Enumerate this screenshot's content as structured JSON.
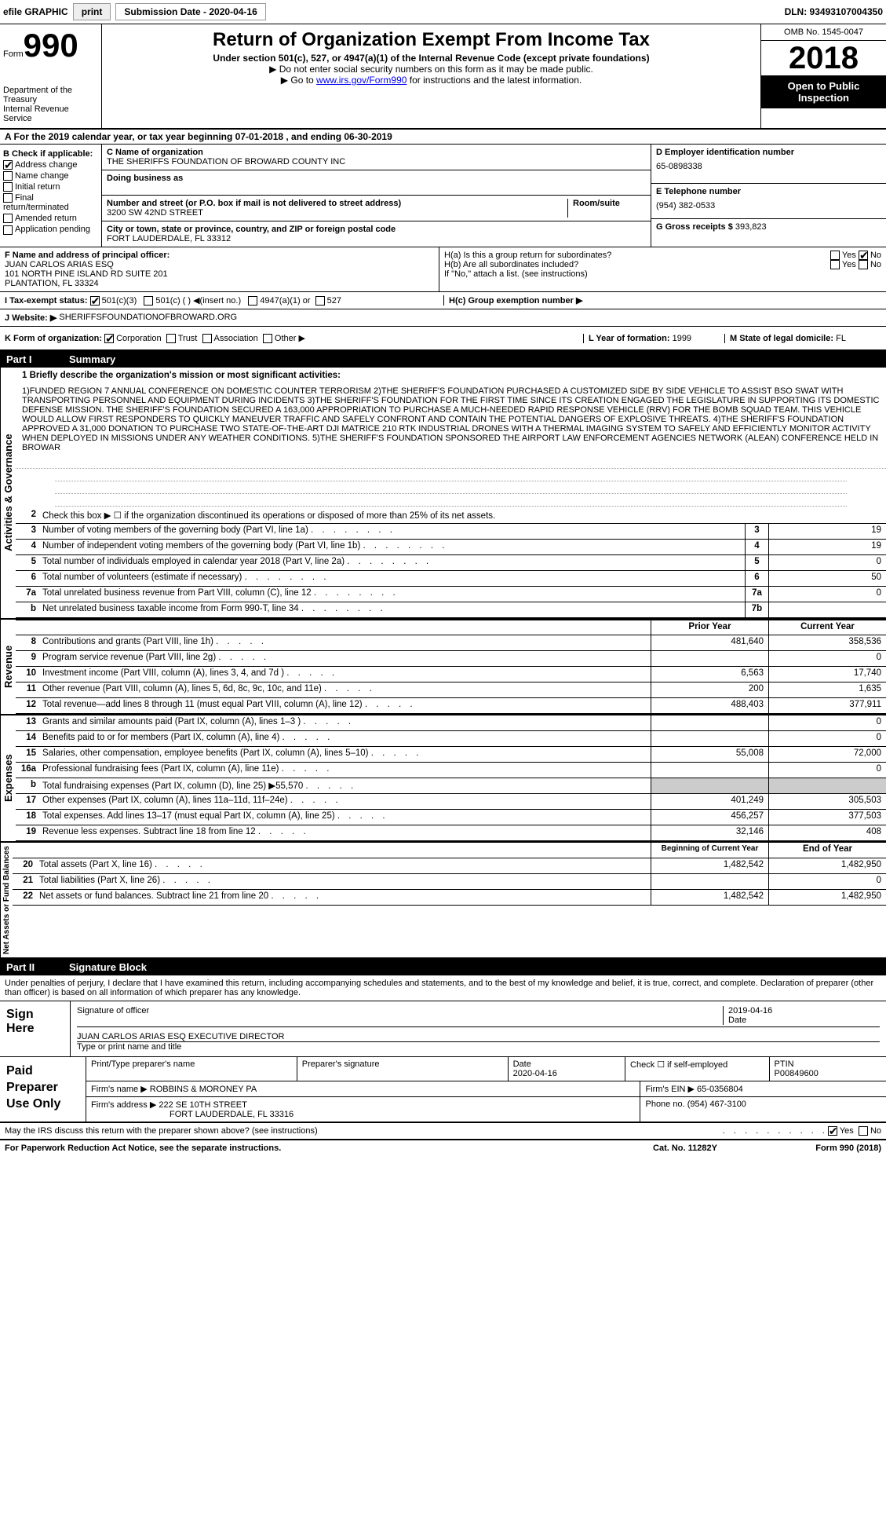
{
  "topbar": {
    "efile_label": "efile GRAPHIC",
    "print_btn": "print",
    "submission_label": "Submission Date - 2020-04-16",
    "dln": "DLN: 93493107004350"
  },
  "header": {
    "form_label": "Form",
    "form_num": "990",
    "dept": "Department of the Treasury",
    "irs": "Internal Revenue Service",
    "title": "Return of Organization Exempt From Income Tax",
    "subtitle": "Under section 501(c), 527, or 4947(a)(1) of the Internal Revenue Code (except private foundations)",
    "note1": "▶ Do not enter social security numbers on this form as it may be made public.",
    "note2_pre": "▶ Go to ",
    "note2_link": "www.irs.gov/Form990",
    "note2_post": " for instructions and the latest information.",
    "omb": "OMB No. 1545-0047",
    "year": "2018",
    "open": "Open to Public Inspection"
  },
  "period": {
    "text": "A For the 2019 calendar year, or tax year beginning 07-01-2018   , and ending 06-30-2019"
  },
  "checkboxes": {
    "header": "B Check if applicable:",
    "address_change": "Address change",
    "name_change": "Name change",
    "initial_return": "Initial return",
    "final_return": "Final return/terminated",
    "amended_return": "Amended return",
    "application_pending": "Application pending"
  },
  "entity": {
    "name_label": "C Name of organization",
    "name": "THE SHERIFFS FOUNDATION OF BROWARD COUNTY INC",
    "dba_label": "Doing business as",
    "dba": "",
    "street_label": "Number and street (or P.O. box if mail is not delivered to street address)",
    "street": "3200 SW 42ND STREET",
    "room_label": "Room/suite",
    "city_label": "City or town, state or province, country, and ZIP or foreign postal code",
    "city": "FORT LAUDERDALE, FL  33312",
    "officer_label": "F Name and address of principal officer:",
    "officer_name": "JUAN CARLOS ARIAS ESQ",
    "officer_addr1": "101 NORTH PINE ISLAND RD SUITE 201",
    "officer_addr2": "PLANTATION, FL  33324"
  },
  "right": {
    "ein_label": "D Employer identification number",
    "ein": "65-0898338",
    "phone_label": "E Telephone number",
    "phone": "(954) 382-0533",
    "gross_label": "G Gross receipts $",
    "gross": "393,823",
    "ha_label": "H(a)  Is this a group return for subordinates?",
    "hb_label": "H(b)  Are all subordinates included?",
    "hb_note": "If \"No,\" attach a list. (see instructions)",
    "hc_label": "H(c)  Group exemption number ▶",
    "yes": "Yes",
    "no": "No"
  },
  "tax_status": {
    "label": "I   Tax-exempt status:",
    "c3": "501(c)(3)",
    "c": "501(c) (   ) ◀(insert no.)",
    "a1": "4947(a)(1) or",
    "s527": "527"
  },
  "website": {
    "label": "J   Website: ▶",
    "value": "SHERIFFSFOUNDATIONOFBROWARD.ORG"
  },
  "formorg": {
    "label": "K Form of organization:",
    "corp": "Corporation",
    "trust": "Trust",
    "assoc": "Association",
    "other": "Other ▶",
    "year_label": "L Year of formation:",
    "year": "1999",
    "state_label": "M State of legal domicile:",
    "state": "FL"
  },
  "part1": {
    "label": "Part I",
    "title": "Summary"
  },
  "activities": {
    "vert": "Activities & Governance",
    "line1_label": "1  Briefly describe the organization's mission or most significant activities:",
    "mission": "1)FUNDED REGION 7 ANNUAL CONFERENCE ON DOMESTIC COUNTER TERRORISM 2)THE SHERIFF'S FOUNDATION PURCHASED A CUSTOMIZED SIDE BY SIDE VEHICLE TO ASSIST BSO SWAT WITH TRANSPORTING PERSONNEL AND EQUIPMENT DURING INCIDENTS 3)THE SHERIFF'S FOUNDATION FOR THE FIRST TIME SINCE ITS CREATION ENGAGED THE LEGISLATURE IN SUPPORTING ITS DOMESTIC DEFENSE MISSION. THE SHERIFF'S FOUNDATION SECURED A 163,000 APPROPRIATION TO PURCHASE A MUCH-NEEDED RAPID RESPONSE VEHICLE (RRV) FOR THE BOMB SQUAD TEAM. THIS VEHICLE WOULD ALLOW FIRST RESPONDERS TO QUICKLY MANEUVER TRAFFIC AND SAFELY CONFRONT AND CONTAIN THE POTENTIAL DANGERS OF EXPLOSIVE THREATS. 4)THE SHERIFF'S FOUNDATION APPROVED A 31,000 DONATION TO PURCHASE TWO STATE-OF-THE-ART DJI MATRICE 210 RTK INDUSTRIAL DRONES WITH A THERMAL IMAGING SYSTEM TO SAFELY AND EFFICIENTLY MONITOR ACTIVITY WHEN DEPLOYED IN MISSIONS UNDER ANY WEATHER CONDITIONS. 5)THE SHERIFF'S FOUNDATION SPONSORED THE AIRPORT LAW ENFORCEMENT AGENCIES NETWORK (ALEAN) CONFERENCE HELD IN BROWAR",
    "line2": "Check this box ▶ ☐ if the organization discontinued its operations or disposed of more than 25% of its net assets.",
    "lines": [
      {
        "n": "3",
        "d": "Number of voting members of the governing body (Part VI, line 1a)",
        "b": "3",
        "v": "19"
      },
      {
        "n": "4",
        "d": "Number of independent voting members of the governing body (Part VI, line 1b)",
        "b": "4",
        "v": "19"
      },
      {
        "n": "5",
        "d": "Total number of individuals employed in calendar year 2018 (Part V, line 2a)",
        "b": "5",
        "v": "0"
      },
      {
        "n": "6",
        "d": "Total number of volunteers (estimate if necessary)",
        "b": "6",
        "v": "50"
      },
      {
        "n": "7a",
        "d": "Total unrelated business revenue from Part VIII, column (C), line 12",
        "b": "7a",
        "v": "0"
      },
      {
        "n": "b",
        "d": "Net unrelated business taxable income from Form 990-T, line 34",
        "b": "7b",
        "v": ""
      }
    ]
  },
  "revenue": {
    "vert": "Revenue",
    "hdr_prior": "Prior Year",
    "hdr_current": "Current Year",
    "lines": [
      {
        "n": "8",
        "d": "Contributions and grants (Part VIII, line 1h)",
        "p": "481,640",
        "c": "358,536"
      },
      {
        "n": "9",
        "d": "Program service revenue (Part VIII, line 2g)",
        "p": "",
        "c": "0"
      },
      {
        "n": "10",
        "d": "Investment income (Part VIII, column (A), lines 3, 4, and 7d )",
        "p": "6,563",
        "c": "17,740"
      },
      {
        "n": "11",
        "d": "Other revenue (Part VIII, column (A), lines 5, 6d, 8c, 9c, 10c, and 11e)",
        "p": "200",
        "c": "1,635"
      },
      {
        "n": "12",
        "d": "Total revenue—add lines 8 through 11 (must equal Part VIII, column (A), line 12)",
        "p": "488,403",
        "c": "377,911"
      }
    ]
  },
  "expenses": {
    "vert": "Expenses",
    "lines": [
      {
        "n": "13",
        "d": "Grants and similar amounts paid (Part IX, column (A), lines 1–3 )",
        "p": "",
        "c": "0"
      },
      {
        "n": "14",
        "d": "Benefits paid to or for members (Part IX, column (A), line 4)",
        "p": "",
        "c": "0"
      },
      {
        "n": "15",
        "d": "Salaries, other compensation, employee benefits (Part IX, column (A), lines 5–10)",
        "p": "55,008",
        "c": "72,000"
      },
      {
        "n": "16a",
        "d": "Professional fundraising fees (Part IX, column (A), line 11e)",
        "p": "",
        "c": "0"
      },
      {
        "n": "b",
        "d": "Total fundraising expenses (Part IX, column (D), line 25) ▶55,570",
        "p": "shaded",
        "c": "shaded"
      },
      {
        "n": "17",
        "d": "Other expenses (Part IX, column (A), lines 11a–11d, 11f–24e)",
        "p": "401,249",
        "c": "305,503"
      },
      {
        "n": "18",
        "d": "Total expenses. Add lines 13–17 (must equal Part IX, column (A), line 25)",
        "p": "456,257",
        "c": "377,503"
      },
      {
        "n": "19",
        "d": "Revenue less expenses. Subtract line 18 from line 12",
        "p": "32,146",
        "c": "408"
      }
    ]
  },
  "netassets": {
    "vert": "Net Assets or Fund Balances",
    "hdr_begin": "Beginning of Current Year",
    "hdr_end": "End of Year",
    "lines": [
      {
        "n": "20",
        "d": "Total assets (Part X, line 16)",
        "p": "1,482,542",
        "c": "1,482,950"
      },
      {
        "n": "21",
        "d": "Total liabilities (Part X, line 26)",
        "p": "",
        "c": "0"
      },
      {
        "n": "22",
        "d": "Net assets or fund balances. Subtract line 21 from line 20",
        "p": "1,482,542",
        "c": "1,482,950"
      }
    ]
  },
  "part2": {
    "label": "Part II",
    "title": "Signature Block",
    "intro": "Under penalties of perjury, I declare that I have examined this return, including accompanying schedules and statements, and to the best of my knowledge and belief, it is true, correct, and complete. Declaration of preparer (other than officer) is based on all information of which preparer has any knowledge."
  },
  "sign": {
    "label": "Sign Here",
    "sig_label": "Signature of officer",
    "date_label": "Date",
    "date": "2019-04-16",
    "name": "JUAN CARLOS ARIAS ESQ  EXECUTIVE DIRECTOR",
    "name_label": "Type or print name and title"
  },
  "preparer": {
    "label": "Paid Preparer Use Only",
    "print_label": "Print/Type preparer's name",
    "sig_label": "Preparer's signature",
    "date_label": "Date",
    "date": "2020-04-16",
    "check_label": "Check ☐ if self-employed",
    "ptin_label": "PTIN",
    "ptin": "P00849600",
    "firm_name_label": "Firm's name    ▶",
    "firm_name": "ROBBINS & MORONEY PA",
    "firm_ein_label": "Firm's EIN ▶",
    "firm_ein": "65-0356804",
    "firm_addr_label": "Firm's address ▶",
    "firm_addr1": "222 SE 10TH STREET",
    "firm_addr2": "FORT LAUDERDALE, FL  33316",
    "phone_label": "Phone no.",
    "phone": "(954) 467-3100"
  },
  "footer": {
    "discuss": "May the IRS discuss this return with the preparer shown above? (see instructions)",
    "yes": "Yes",
    "no": "No",
    "paperwork": "For Paperwork Reduction Act Notice, see the separate instructions.",
    "cat": "Cat. No. 11282Y",
    "form": "Form 990 (2018)"
  }
}
